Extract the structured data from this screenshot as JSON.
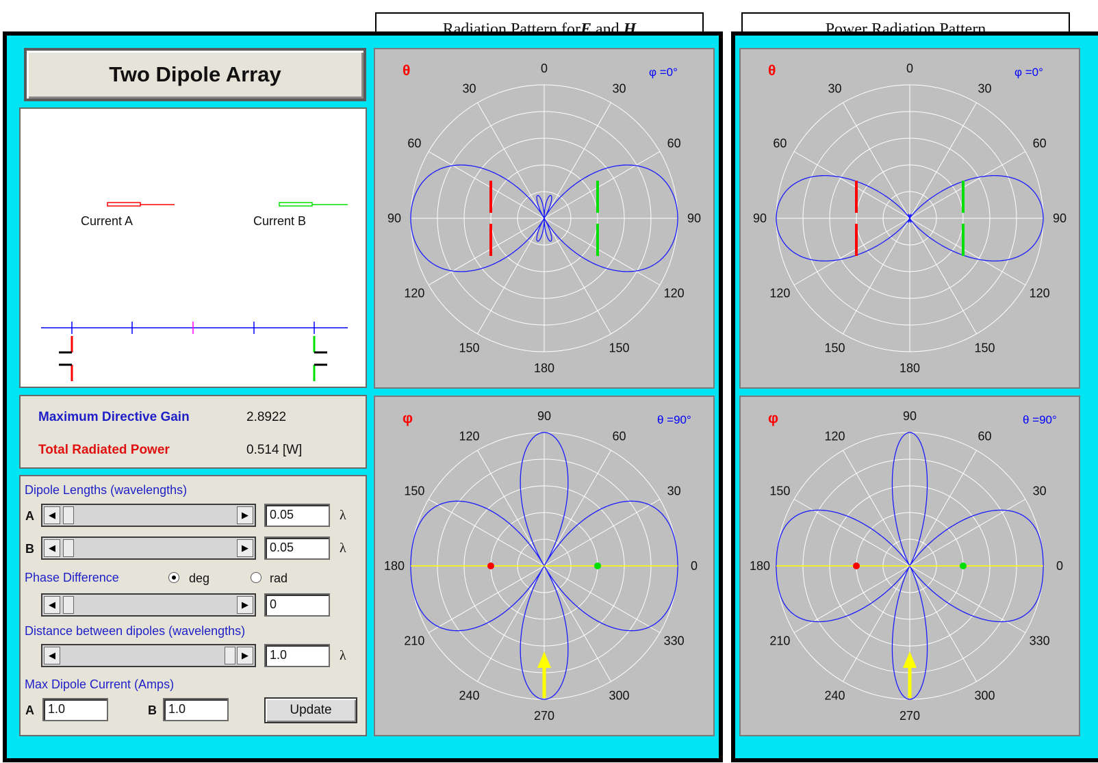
{
  "app": {
    "title": "Two Dipole Array"
  },
  "headers": {
    "pattern_eh_prefix": "Radiation Pattern for ",
    "pattern_eh_e": "E",
    "pattern_eh_and": " and ",
    "pattern_eh_h": "H",
    "power_pattern": "Power Radiation Pattern"
  },
  "diagram": {
    "current_a": "Current A",
    "current_b": "Current B",
    "colors": {
      "a": "#ff0000",
      "b": "#00e000",
      "axis": "#0000ff",
      "center": "#ff00ff"
    }
  },
  "info": {
    "gain_label": "Maximum Directive Gain",
    "gain_value": "2.8922",
    "power_label": "Total Radiated Power",
    "power_value": "0.514 [W]"
  },
  "controls": {
    "dipole_lengths_label": "Dipole Lengths (wavelengths)",
    "a_label": "A",
    "b_label": "B",
    "length_a": "0.05",
    "length_b": "0.05",
    "lambda": "λ",
    "phase_label": "Phase Difference",
    "deg_label": "deg",
    "rad_label": "rad",
    "phase_unit_selected": "deg",
    "phase_value": "0",
    "distance_label": "Distance between dipoles (wavelengths)",
    "distance_value": "1.0",
    "max_current_label": "Max Dipole Current (Amps)",
    "current_a": "1.0",
    "current_b": "1.0",
    "update_label": "Update",
    "slider_levels": {
      "length_a": 0.05,
      "length_b": 0.05,
      "phase": 0.0,
      "distance": 1.0
    }
  },
  "plots": {
    "theta_symbol": "θ",
    "phi_symbol": "φ",
    "phi_setting": "φ =0°",
    "theta_setting": "θ =90°",
    "elevation_labels": {
      "top": "0",
      "top_left": "30",
      "top_right": "30",
      "upper_left": "60",
      "upper_right": "60",
      "left": "90",
      "right": "90",
      "lower_left": "120",
      "lower_right": "120",
      "bottom_left": "150",
      "bottom_right": "150",
      "bottom": "180"
    },
    "azimuth_labels": {
      "top": "90",
      "top_left": "120",
      "top_right": "60",
      "upper_left": "150",
      "upper_right": "30",
      "left": "180",
      "right": "0",
      "lower_left": "210",
      "lower_right": "330",
      "bottom_left": "240",
      "bottom_right": "300",
      "bottom": "270"
    },
    "colors": {
      "pattern": "#1a1aff",
      "grid": "#ffffff",
      "background": "#bfbfbf",
      "axis_yellow": "#ffff00",
      "symbol_red": "#ff0000",
      "setting_blue": "#0000ff"
    }
  }
}
